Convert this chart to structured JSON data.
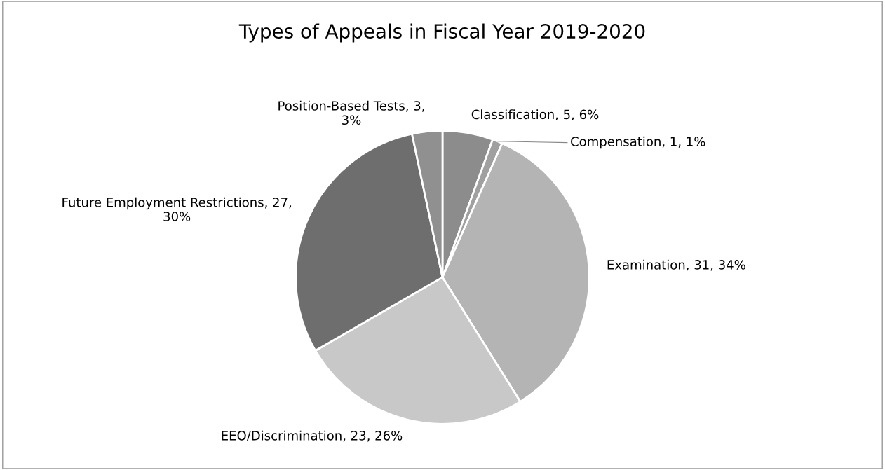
{
  "chart_data": {
    "type": "pie",
    "title": "Types of Appeals in Fiscal Year 2019-2020",
    "categories": [
      "Classification",
      "Compensation",
      "Examination",
      "EEO/Discrimination",
      "Future Employment Restrictions",
      "Position-Based Tests"
    ],
    "values": [
      5,
      1,
      31,
      23,
      27,
      3
    ],
    "value_labels": [
      "5, 6%",
      "1, 1%",
      "31, 34%",
      "23, 26%",
      "27,\n30%",
      "3,\n3%"
    ],
    "colors": [
      "#8c8c8c",
      "#a0a0a0",
      "#b4b4b4",
      "#c8c8c8",
      "#6e6e6e",
      "#909090"
    ]
  }
}
